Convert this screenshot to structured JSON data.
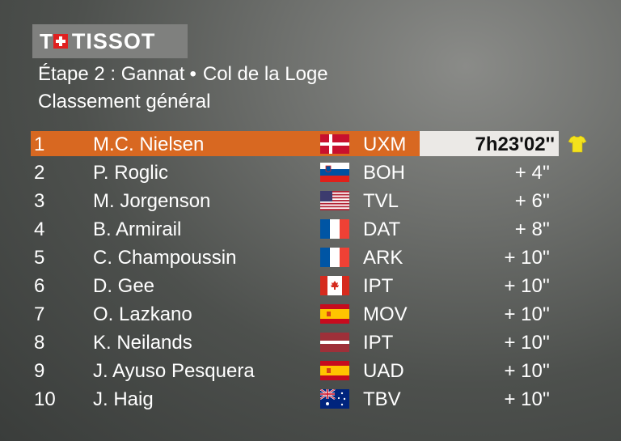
{
  "logo": {
    "brand": "TISSOT"
  },
  "header": {
    "stage": "Étape 2 : Gannat",
    "separator": "•",
    "finish": "Col de la Loge",
    "classification": "Classement général"
  },
  "rows": [
    {
      "rank": "1",
      "name": "M.C. Nielsen",
      "flag": "denmark",
      "team": "UXM",
      "time": "7h23'02''"
    },
    {
      "rank": "2",
      "name": "P. Roglic",
      "flag": "slovenia",
      "team": "BOH",
      "time": "+ 4''"
    },
    {
      "rank": "3",
      "name": "M. Jorgenson",
      "flag": "united-states",
      "team": "TVL",
      "time": "+ 6''"
    },
    {
      "rank": "4",
      "name": "B. Armirail",
      "flag": "france",
      "team": "DAT",
      "time": "+ 8''"
    },
    {
      "rank": "5",
      "name": "C. Champoussin",
      "flag": "france",
      "team": "ARK",
      "time": "+ 10''"
    },
    {
      "rank": "6",
      "name": "D. Gee",
      "flag": "canada",
      "team": "IPT",
      "time": "+ 10''"
    },
    {
      "rank": "7",
      "name": "O. Lazkano",
      "flag": "spain",
      "team": "MOV",
      "time": "+ 10''"
    },
    {
      "rank": "8",
      "name": "K. Neilands",
      "flag": "latvia",
      "team": "IPT",
      "time": "+ 10''"
    },
    {
      "rank": "9",
      "name": "J. Ayuso Pesquera",
      "flag": "spain",
      "team": "UAD",
      "time": "+ 10''"
    },
    {
      "rank": "10",
      "name": "J. Haig",
      "flag": "australia",
      "team": "TBV",
      "time": "+ 10''"
    }
  ],
  "leader_icon": "yellow-jersey-icon",
  "colors": {
    "highlight": "#d86821",
    "time_box": "#ebe9e6",
    "jersey": "#f3e21c",
    "logo_bg": "#7f807e",
    "logo_red": "#e02020"
  }
}
